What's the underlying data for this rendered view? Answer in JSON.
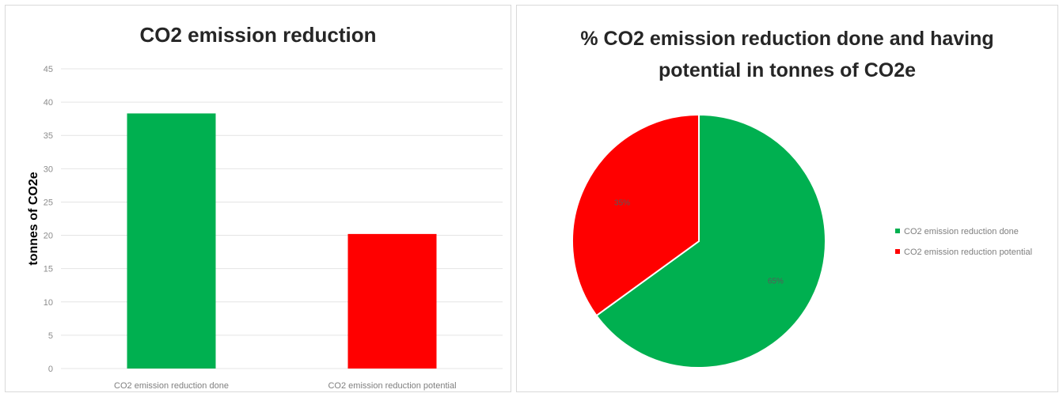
{
  "bar_chart": {
    "title": "CO2 emission reduction",
    "ylabel": "tonnes of CO2e"
  },
  "pie_chart": {
    "title": "% CO2 emission reduction done and having potential in tonnes of CO2e"
  },
  "colors": {
    "done": "#00b050",
    "potential": "#ff0000",
    "grid": "#e4e4e4"
  },
  "chart_data": [
    {
      "type": "bar",
      "title": "CO2 emission reduction",
      "xlabel": "",
      "ylabel": "tonnes of CO2e",
      "categories": [
        "CO2 emission reduction done",
        "CO2 emission reduction potential"
      ],
      "values": [
        38.3,
        20.2
      ],
      "colors": [
        "#00b050",
        "#ff0000"
      ],
      "ylim": [
        0,
        45
      ],
      "yticks": [
        0,
        5,
        10,
        15,
        20,
        25,
        30,
        35,
        40,
        45
      ],
      "grid": true,
      "legend": "none"
    },
    {
      "type": "pie",
      "title": "% CO2 emission reduction done and having potential in tonnes of CO2e",
      "labels": [
        "CO2 emission reduction done",
        "CO2 emission reduction potential"
      ],
      "values": [
        65,
        35
      ],
      "data_labels": [
        "65%",
        "35%"
      ],
      "colors": [
        "#00b050",
        "#ff0000"
      ],
      "legend": "right"
    }
  ]
}
